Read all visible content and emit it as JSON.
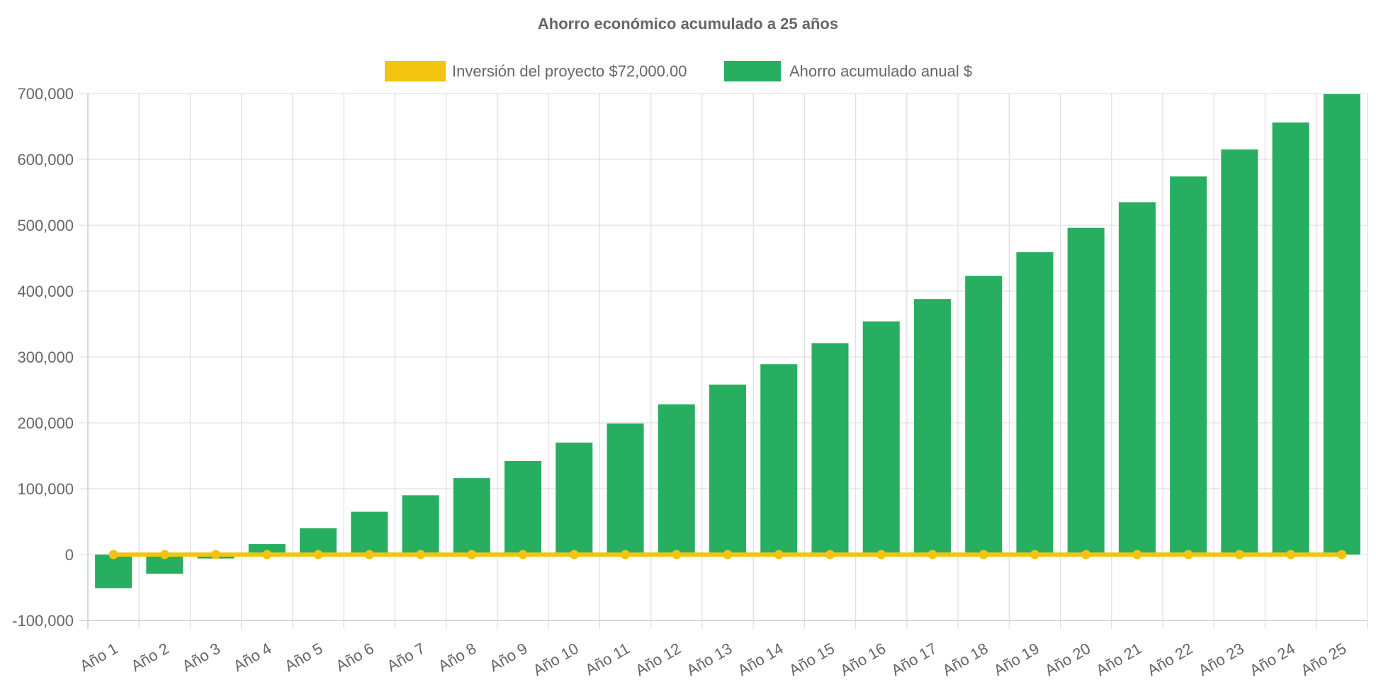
{
  "chart_data": {
    "type": "bar",
    "title": "Ahorro económico acumulado a 25 años",
    "categories": [
      "Año 1",
      "Año 2",
      "Año 3",
      "Año 4",
      "Año 5",
      "Año 6",
      "Año 7",
      "Año 8",
      "Año 9",
      "Año 10",
      "Año 11",
      "Año 12",
      "Año 13",
      "Año 14",
      "Año 15",
      "Año 16",
      "Año 17",
      "Año 18",
      "Año 19",
      "Año 20",
      "Año 21",
      "Año 22",
      "Año 23",
      "Año 24",
      "Año 25"
    ],
    "series": [
      {
        "name": "Inversión del proyecto $72,000.00",
        "type": "line",
        "color": "#f2c40f",
        "values": [
          0,
          0,
          0,
          0,
          0,
          0,
          0,
          0,
          0,
          0,
          0,
          0,
          0,
          0,
          0,
          0,
          0,
          0,
          0,
          0,
          0,
          0,
          0,
          0,
          0
        ]
      },
      {
        "name": "Ahorro acumulado anual $",
        "type": "bar",
        "color": "#27ae60",
        "values": [
          -51000,
          -29000,
          -6000,
          16000,
          40000,
          65000,
          90000,
          116000,
          142000,
          170000,
          199000,
          228000,
          258000,
          289000,
          321000,
          354000,
          388000,
          423000,
          459000,
          496000,
          535000,
          574000,
          615000,
          656000,
          699000
        ]
      }
    ],
    "ylim": [
      -100000,
      700000
    ],
    "yticks": [
      -100000,
      0,
      100000,
      200000,
      300000,
      400000,
      500000,
      600000,
      700000
    ],
    "ytick_labels": [
      "-100,000",
      "0",
      "100,000",
      "200,000",
      "300,000",
      "400,000",
      "500,000",
      "600,000",
      "700,000"
    ],
    "xlabel": "",
    "ylabel": "",
    "grid": true,
    "legend_position": "top"
  }
}
